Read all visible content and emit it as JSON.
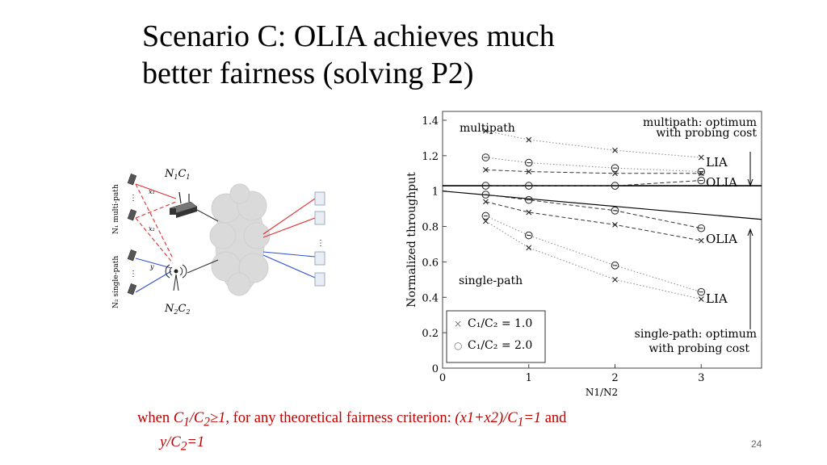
{
  "slide": {
    "title_line1": "Scenario C: OLIA achieves much",
    "title_line2": "better fairness (solving P2)",
    "page_number": "24"
  },
  "caption": {
    "p1": "when ",
    "c1": "C",
    "s1": "1",
    "slash": "/C",
    "s2": "2",
    "cond": "≥1",
    "p2": ", for any theoretical fairness criterion: ",
    "crit1": "(x1+x2)/C",
    "s3": "1",
    "eq1": "=1",
    "and": " and",
    "crit2": "y/C",
    "s4": "2",
    "eq2": "=1"
  },
  "diagram": {
    "label_top": "N",
    "label_top_sub": "1",
    "label_top_c": "C",
    "label_top_csub": "1",
    "label_bottom": "N",
    "label_bottom_sub": "2",
    "label_bottom_c": "C",
    "label_bottom_csub": "2",
    "group_top": "N₁ multi-path",
    "group_bottom": "N₂ single-path",
    "x1": "x₁",
    "x2": "x₂",
    "y": "y"
  },
  "chart_data": {
    "type": "line",
    "xlabel": "N1/N2",
    "ylabel": "Normalized throughput",
    "xlim": [
      0,
      3.7
    ],
    "ylim": [
      0,
      1.45
    ],
    "xticks": [
      "0",
      "1",
      "2",
      "3"
    ],
    "yticks": [
      "0",
      "0.2",
      "0.4",
      "0.6",
      "0.8",
      "1",
      "1.2",
      "1.4"
    ],
    "annotations": {
      "multipath": "multipath",
      "single_path": "single-path",
      "mp_opt_1": "multipath: optimum",
      "mp_opt_2": "with probing cost",
      "sp_opt_1": "single-path: optimum",
      "sp_opt_2": "with probing cost",
      "lia_top": "LIA",
      "olia_top": "OLIA",
      "olia_bottom": "OLIA",
      "lia_bottom": "LIA"
    },
    "legend": [
      {
        "marker": "×",
        "label": "C₁/C₂ = 1.0"
      },
      {
        "marker": "○",
        "label": "C₁/C₂ = 2.0"
      }
    ],
    "legend_placement": "bottom-left",
    "reference_lines": [
      {
        "name": "optimum",
        "x": [
          0,
          3.7
        ],
        "y": [
          1.03,
          1.03
        ]
      },
      {
        "name": "optimum-sloped",
        "x": [
          0,
          3.7
        ],
        "y": [
          1.0,
          0.84
        ]
      }
    ],
    "series": [
      {
        "name": "LIA multipath ×",
        "marker": "x",
        "style": "dotted",
        "x": [
          0.5,
          1,
          2,
          3
        ],
        "y": [
          1.34,
          1.29,
          1.23,
          1.19
        ]
      },
      {
        "name": "OLIA multipath ×",
        "marker": "x",
        "style": "dashed",
        "x": [
          0.5,
          1,
          2,
          3
        ],
        "y": [
          1.12,
          1.11,
          1.1,
          1.1
        ]
      },
      {
        "name": "LIA multipath ○",
        "marker": "o",
        "style": "dotted",
        "x": [
          0.5,
          1,
          2,
          3
        ],
        "y": [
          1.19,
          1.16,
          1.13,
          1.11
        ]
      },
      {
        "name": "OLIA multipath ○",
        "marker": "o",
        "style": "dashed",
        "x": [
          0.5,
          1,
          2,
          3
        ],
        "y": [
          1.03,
          1.03,
          1.03,
          1.06
        ]
      },
      {
        "name": "OLIA single-path ×",
        "marker": "x",
        "style": "dashed",
        "x": [
          0.5,
          1,
          2,
          3
        ],
        "y": [
          0.94,
          0.88,
          0.81,
          0.72
        ]
      },
      {
        "name": "LIA single-path ×",
        "marker": "x",
        "style": "dotted",
        "x": [
          0.5,
          1,
          2,
          3
        ],
        "y": [
          0.83,
          0.68,
          0.5,
          0.39
        ]
      },
      {
        "name": "OLIA single-path ○",
        "marker": "o",
        "style": "dashed",
        "x": [
          0.5,
          1,
          2,
          3
        ],
        "y": [
          0.98,
          0.95,
          0.89,
          0.79
        ]
      },
      {
        "name": "LIA single-path ○",
        "marker": "o",
        "style": "dotted",
        "x": [
          0.5,
          1,
          2,
          3
        ],
        "y": [
          0.86,
          0.75,
          0.58,
          0.43
        ]
      }
    ]
  }
}
